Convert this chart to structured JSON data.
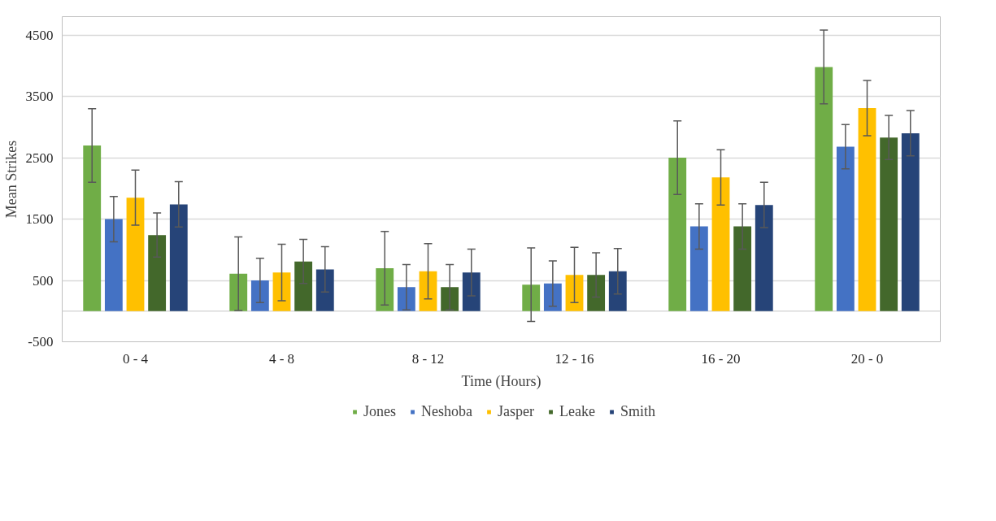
{
  "chart_data": {
    "type": "bar",
    "xlabel": "Time (Hours)",
    "ylabel": "Mean Strikes",
    "categories": [
      "0 - 4",
      "4 - 8",
      "8 - 12",
      "12 - 16",
      "16 - 20",
      "20 - 0"
    ],
    "series": [
      {
        "name": "Jones",
        "color": "#70ad47",
        "values": [
          2700,
          610,
          700,
          430,
          2500,
          3980
        ],
        "errors": [
          600,
          600,
          600,
          600,
          600,
          600
        ]
      },
      {
        "name": "Neshoba",
        "color": "#4472c4",
        "values": [
          1500,
          500,
          390,
          450,
          1380,
          2680
        ],
        "errors": [
          370,
          360,
          370,
          370,
          370,
          360
        ]
      },
      {
        "name": "Jasper",
        "color": "#ffc000",
        "values": [
          1850,
          630,
          650,
          590,
          2180,
          3310
        ],
        "errors": [
          450,
          460,
          450,
          450,
          450,
          450
        ]
      },
      {
        "name": "Leake",
        "color": "#43682b",
        "values": [
          1240,
          810,
          390,
          590,
          1380,
          2830
        ],
        "errors": [
          360,
          360,
          370,
          360,
          370,
          360
        ]
      },
      {
        "name": "Smith",
        "color": "#264478",
        "values": [
          1740,
          680,
          630,
          650,
          1730,
          2900
        ],
        "errors": [
          370,
          370,
          380,
          370,
          370,
          370
        ]
      }
    ],
    "ylim": [
      -500,
      4800
    ],
    "yticks": [
      -500,
      500,
      1500,
      2500,
      3500,
      4500
    ],
    "ref_lines": [
      {
        "axis": "y",
        "value": 0,
        "color": "#d9d9d9"
      }
    ],
    "grid": "y",
    "legend": "bottom"
  }
}
